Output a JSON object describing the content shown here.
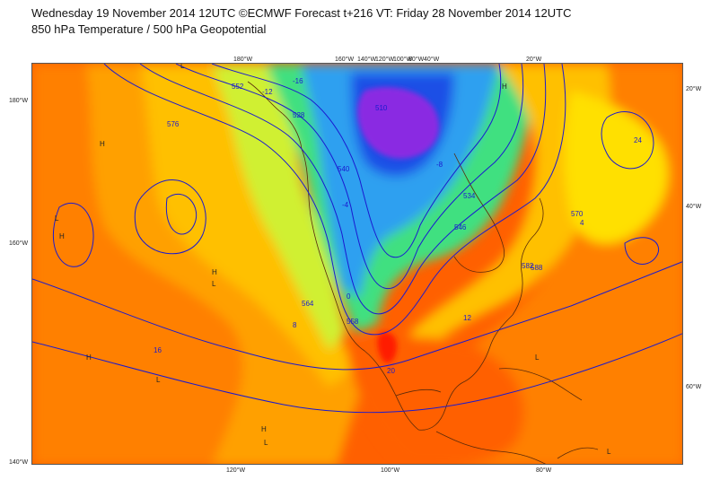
{
  "header": {
    "line1": "Wednesday 19 November 2014 12UTC ©ECMWF Forecast t+216 VT: Friday 28 November 2014 12UTC",
    "line2": "850 hPa Temperature / 500 hPa Geopotential"
  },
  "grid_labels": {
    "top": [
      "180°W",
      "160°W",
      "140°W",
      "120°W",
      "100°W",
      "80°W",
      "60°W",
      "40°W",
      "20°W"
    ],
    "bottom": [
      "120°W",
      "100°W",
      "80°W"
    ],
    "left": [
      "180°W",
      "160°W",
      "140°W"
    ],
    "right": [
      "20°W",
      "40°W",
      "60°W"
    ]
  },
  "contour_labels": [
    "552",
    "576",
    "528",
    "540",
    "564",
    "588",
    "510",
    "534",
    "546",
    "558",
    "570",
    "582",
    "-16",
    "-12",
    "-8",
    "-4",
    "0",
    "4",
    "8",
    "12",
    "16",
    "20",
    "24"
  ],
  "pressure_markers": [
    "H",
    "L"
  ],
  "colors": {
    "very_cold": "#3a0070",
    "cold_purple": "#8a2be2",
    "cold_blue": "#1e4fe6",
    "cool_blue": "#2fa0f0",
    "cyan": "#22e0f0",
    "green": "#40e080",
    "light_green": "#a0ee40",
    "yellow_green": "#d0f030",
    "yellow": "#ffe000",
    "gold": "#ffc000",
    "orange_light": "#ffa000",
    "orange": "#ff8000",
    "orange_dark": "#ff6000",
    "red": "#ff1a00",
    "contour": "#1a1ad0",
    "coast": "#5a2a0a"
  }
}
